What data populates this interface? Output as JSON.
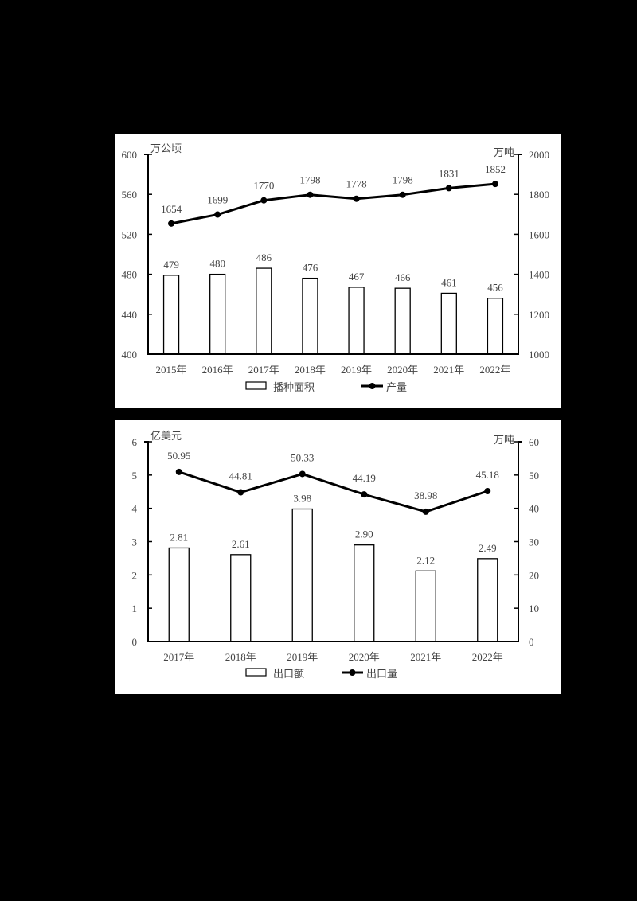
{
  "chart_data": [
    {
      "type": "bar+line",
      "title": "",
      "categories": [
        "2015年",
        "2016年",
        "2017年",
        "2018年",
        "2019年",
        "2020年",
        "2021年",
        "2022年"
      ],
      "series": [
        {
          "name": "播种面积",
          "type": "bar",
          "axis": "left",
          "values": [
            479,
            480,
            486,
            476,
            467,
            466,
            461,
            456
          ]
        },
        {
          "name": "产量",
          "type": "line",
          "axis": "right",
          "values": [
            1654,
            1699,
            1770,
            1798,
            1778,
            1798,
            1831,
            1852
          ]
        }
      ],
      "left_axis": {
        "unit": "万公顷",
        "ylim": [
          400,
          600
        ],
        "ticks": [
          400,
          440,
          480,
          520,
          560,
          600
        ]
      },
      "right_axis": {
        "unit": "万吨",
        "ylim": [
          1000,
          2000
        ],
        "ticks": [
          1000,
          1200,
          1400,
          1600,
          1800,
          2000
        ]
      },
      "xlabel": "",
      "grid": false,
      "legend_position": "bottom",
      "legend": [
        "播种面积",
        "产量"
      ]
    },
    {
      "type": "bar+line",
      "title": "",
      "categories": [
        "2017年",
        "2018年",
        "2019年",
        "2020年",
        "2021年",
        "2022年"
      ],
      "series": [
        {
          "name": "出口额",
          "type": "bar",
          "axis": "left",
          "values": [
            2.81,
            2.61,
            3.98,
            2.9,
            2.12,
            2.49
          ],
          "labels": [
            "2.81",
            "2.61",
            "3.98",
            "2.90",
            "2.12",
            "2.49"
          ]
        },
        {
          "name": "出口量",
          "type": "line",
          "axis": "right",
          "values": [
            50.95,
            44.81,
            50.33,
            44.19,
            38.98,
            45.18
          ],
          "labels": [
            "50.95",
            "44.81",
            "50.33",
            "44.19",
            "38.98",
            "45.18"
          ]
        }
      ],
      "left_axis": {
        "unit": "亿美元",
        "ylim": [
          0,
          6
        ],
        "ticks": [
          0,
          1,
          2,
          3,
          4,
          5,
          6
        ]
      },
      "right_axis": {
        "unit": "万吨",
        "ylim": [
          0,
          60
        ],
        "ticks": [
          0,
          10,
          20,
          30,
          40,
          50,
          60
        ]
      },
      "xlabel": "",
      "grid": false,
      "legend_position": "bottom",
      "legend": [
        "出口额",
        "出口量"
      ]
    }
  ],
  "colors": {
    "line": "#000000",
    "bar_fill": "#ffffff",
    "bar_stroke": "#000000",
    "background": "#000000",
    "panel": "#ffffff"
  }
}
